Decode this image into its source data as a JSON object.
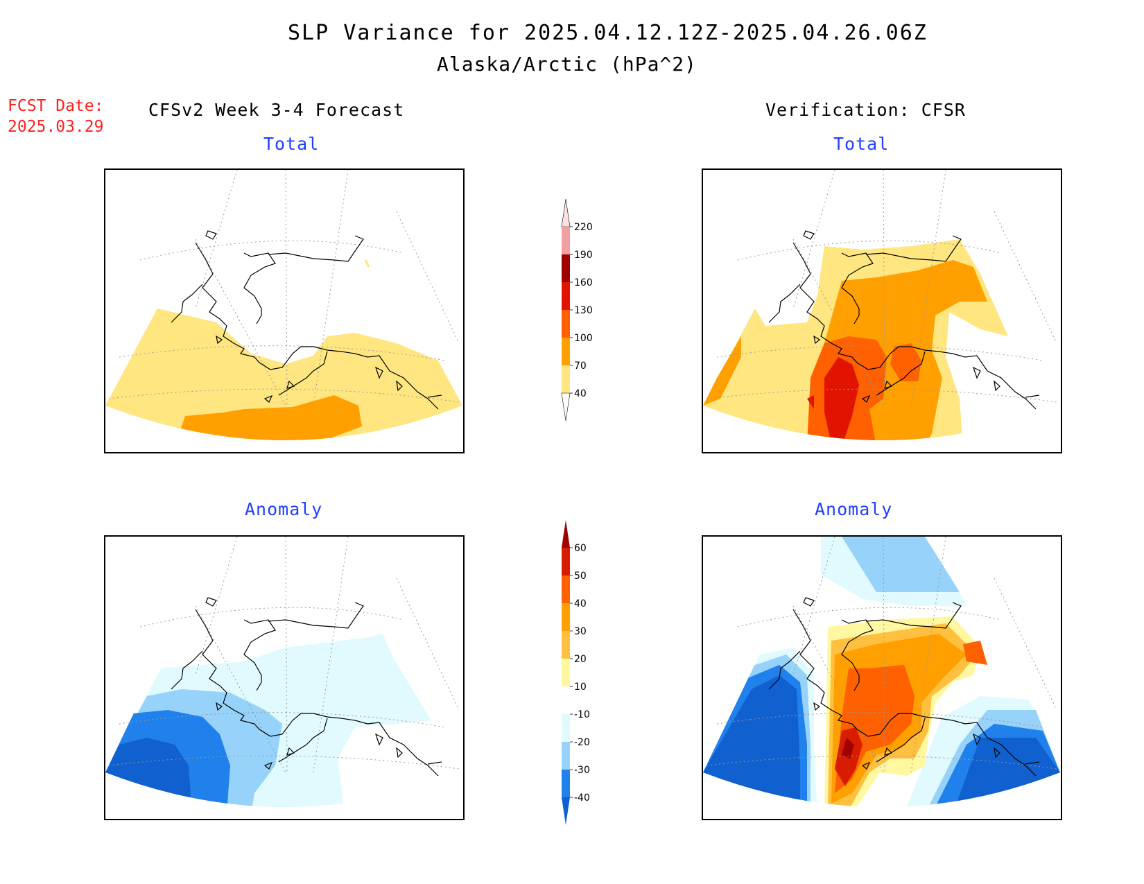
{
  "title": "SLP Variance for 2025.04.12.12Z-2025.04.26.06Z",
  "subtitle": "Alaska/Arctic (hPa^2)",
  "fcst_date_label": "FCST Date:",
  "fcst_date_value": "2025.03.29",
  "left_header": "CFSv2 Week 3-4 Forecast",
  "right_header": "Verification: CFSR",
  "panels": {
    "forecast_total": {
      "label": "Total"
    },
    "verification_total": {
      "label": "Total"
    },
    "forecast_anomaly": {
      "label": "Anomaly"
    },
    "verification_anomaly": {
      "label": "Anomaly"
    }
  },
  "colorbars": {
    "total": {
      "levels": [
        "40",
        "70",
        "100",
        "130",
        "160",
        "190",
        "220"
      ],
      "colors": [
        "#ffe680",
        "#ffa000",
        "#ff6000",
        "#e01400",
        "#a00000",
        "#f0a0a0",
        "#fde0e0"
      ]
    },
    "anomaly": {
      "levels": [
        "-40",
        "-30",
        "-20",
        "-10",
        "10",
        "20",
        "30",
        "40",
        "50",
        "60"
      ],
      "colors": [
        "#1060d0",
        "#2080ec",
        "#96d2fa",
        "#e0fafe",
        "#ffffff",
        "#fff8a0",
        "#ffc040",
        "#ffa000",
        "#ff6000",
        "#d81c00",
        "#a00000"
      ]
    }
  },
  "fill_colors": {
    "yellow": "#ffe680",
    "orange": "#ffa000",
    "dark_orange": "#ff6000",
    "red": "#e01400",
    "dark_red": "#a00000",
    "light_cyan": "#e0fafe",
    "light_blue": "#96d2fa",
    "mid_blue": "#2080ec",
    "deep_blue": "#1060d0"
  }
}
